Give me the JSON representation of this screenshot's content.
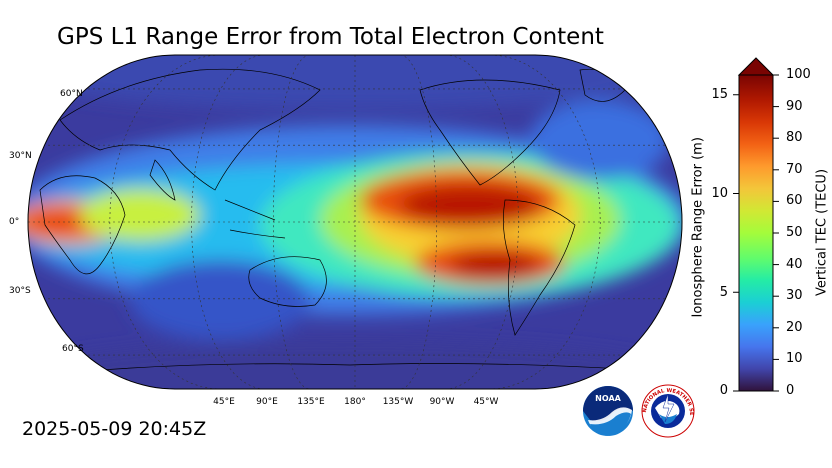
{
  "title": "GPS L1 Range Error from Total Electron Content",
  "timestamp": "2025-05-09 20:45Z",
  "map": {
    "projection": "robinson",
    "central_longitude": 180,
    "lat_labels": [
      "60°N",
      "30°N",
      "0°",
      "30°S",
      "60°S"
    ],
    "lon_labels": [
      "45°E",
      "90°E",
      "135°E",
      "180°",
      "135°W",
      "90°W",
      "45°W"
    ],
    "gridlines": "dashed"
  },
  "colorbar": {
    "left_axis_label": "Ionosphere Range Error (m)",
    "left_ticks": [
      "0",
      "5",
      "10",
      "15"
    ],
    "right_axis_label": "Vertical TEC (TECU)",
    "right_ticks": [
      "0",
      "10",
      "20",
      "30",
      "40",
      "50",
      "60",
      "70",
      "80",
      "90",
      "100"
    ],
    "colormap": "turbo",
    "extend": "max"
  },
  "logos": {
    "noaa": "NOAA",
    "nws": "NATIONAL WEATHER SERVICE"
  }
}
